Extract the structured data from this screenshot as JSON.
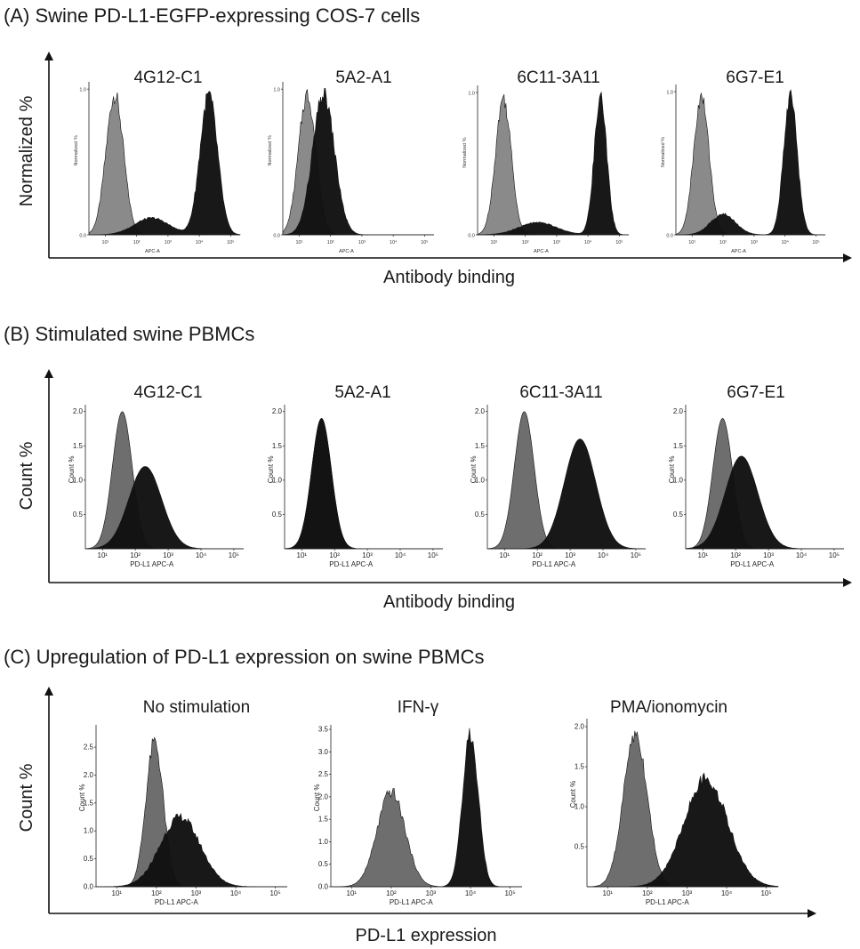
{
  "panels": [
    {
      "title": "(A) Swine PD-L1-EGFP-expressing COS-7 cells",
      "ylabel": "Normalized %",
      "xlabel": "Antibody binding",
      "inner_ylabel": "Normalized %",
      "inner_xlabel": "APC-A",
      "y_ticks": [
        "0.0",
        "1.0"
      ],
      "x_ticks": [
        "10¹",
        "10²",
        "10³",
        "10⁴",
        "10⁵"
      ],
      "plots": [
        {
          "label": "4G12-C1"
        },
        {
          "label": "5A2-A1"
        },
        {
          "label": "6C11-3A11"
        },
        {
          "label": "6G7-E1"
        }
      ]
    },
    {
      "title": "(B) Stimulated swine PBMCs",
      "ylabel": "Count %",
      "xlabel": "Antibody binding",
      "inner_ylabel": "Count %",
      "inner_xlabel": "PD-L1 APC-A",
      "y_ticks": [
        "0.5",
        "1.0",
        "1.5",
        "2.0"
      ],
      "x_ticks": [
        "10¹",
        "10²",
        "10³",
        "10⁴",
        "10⁵"
      ],
      "plots": [
        {
          "label": "4G12-C1"
        },
        {
          "label": "5A2-A1"
        },
        {
          "label": "6C11-3A11"
        },
        {
          "label": "6G7-E1"
        }
      ]
    },
    {
      "title": "(C)  Upregulation of PD-L1 expression on swine PBMCs",
      "ylabel": "Count %",
      "xlabel": "PD-L1 expression",
      "inner_ylabel": "Count %",
      "inner_xlabel": "PD-L1 APC-A",
      "x_ticks": [
        "10¹",
        "10²",
        "10³",
        "10⁴",
        "10⁵"
      ],
      "plots": [
        {
          "label": "No stimulation",
          "y_ticks": [
            "0.0",
            "0.5",
            "1.0",
            "1.5",
            "2.0",
            "2.5"
          ]
        },
        {
          "label": "IFN-γ",
          "y_ticks": [
            "0.0",
            "0.5",
            "1.0",
            "1.5",
            "2.0",
            "2.5",
            "3.0",
            "3.5"
          ]
        },
        {
          "label": "PMA/ionomycin",
          "y_ticks": [
            "0.5",
            "1.0",
            "1.5",
            "2.0"
          ]
        }
      ]
    }
  ],
  "chart_data": [
    {
      "type": "area",
      "title": "(A) Swine PD-L1-EGFP-expressing COS-7 cells",
      "xlabel": "Antibody binding",
      "ylabel": "Normalized %",
      "x_scale": "log",
      "xlim": [
        3,
        200000
      ],
      "ylim": [
        0,
        1.05
      ],
      "colors": {
        "control": "#8a8a8a",
        "stained": "#111111"
      },
      "subplots": [
        {
          "name": "4G12-C1",
          "series": [
            {
              "kind": "control",
              "peaks": [
                {
                  "x": 20,
                  "h": 1.0,
                  "w": 0.28
                }
              ]
            },
            {
              "kind": "stained",
              "peaks": [
                {
                  "x": 20000,
                  "h": 1.0,
                  "w": 0.28
                },
                {
                  "x": 300,
                  "h": 0.12,
                  "w": 0.55
                }
              ]
            }
          ]
        },
        {
          "name": "5A2-A1",
          "series": [
            {
              "kind": "control",
              "peaks": [
                {
                  "x": 18,
                  "h": 1.0,
                  "w": 0.28
                }
              ]
            },
            {
              "kind": "stained",
              "peaks": [
                {
                  "x": 60,
                  "h": 1.0,
                  "w": 0.35
                }
              ]
            }
          ]
        },
        {
          "name": "6C11-3A11",
          "series": [
            {
              "kind": "control",
              "peaks": [
                {
                  "x": 20,
                  "h": 1.0,
                  "w": 0.25
                }
              ]
            },
            {
              "kind": "stained",
              "peaks": [
                {
                  "x": 25000,
                  "h": 1.0,
                  "w": 0.2
                },
                {
                  "x": 250,
                  "h": 0.09,
                  "w": 0.6
                }
              ]
            }
          ]
        },
        {
          "name": "6G7-E1",
          "series": [
            {
              "kind": "control",
              "peaks": [
                {
                  "x": 20,
                  "h": 1.0,
                  "w": 0.25
                }
              ]
            },
            {
              "kind": "stained",
              "peaks": [
                {
                  "x": 15000,
                  "h": 1.0,
                  "w": 0.22
                },
                {
                  "x": 100,
                  "h": 0.15,
                  "w": 0.4
                }
              ]
            }
          ]
        }
      ]
    },
    {
      "type": "area",
      "title": "(B) Stimulated swine PBMCs",
      "xlabel": "Antibody binding",
      "ylabel": "Count %",
      "x_scale": "log",
      "xlim": [
        3,
        200000
      ],
      "ylim": [
        0,
        2.1
      ],
      "colors": {
        "control": "#6e6e6e",
        "stained": "#111111"
      },
      "subplots": [
        {
          "name": "4G12-C1",
          "series": [
            {
              "kind": "control",
              "peaks": [
                {
                  "x": 40,
                  "h": 2.0,
                  "w": 0.3
                }
              ]
            },
            {
              "kind": "stained",
              "peaks": [
                {
                  "x": 200,
                  "h": 1.2,
                  "w": 0.5
                }
              ]
            }
          ]
        },
        {
          "name": "5A2-A1",
          "series": [
            {
              "kind": "control",
              "peaks": [
                {
                  "x": 40,
                  "h": 1.9,
                  "w": 0.3
                }
              ]
            },
            {
              "kind": "stained",
              "peaks": [
                {
                  "x": 40,
                  "h": 1.9,
                  "w": 0.3
                }
              ]
            }
          ]
        },
        {
          "name": "6C11-3A11",
          "series": [
            {
              "kind": "control",
              "peaks": [
                {
                  "x": 40,
                  "h": 2.0,
                  "w": 0.3
                }
              ]
            },
            {
              "kind": "stained",
              "peaks": [
                {
                  "x": 2000,
                  "h": 1.6,
                  "w": 0.48
                }
              ]
            }
          ]
        },
        {
          "name": "6G7-E1",
          "series": [
            {
              "kind": "control",
              "peaks": [
                {
                  "x": 40,
                  "h": 1.9,
                  "w": 0.3
                }
              ]
            },
            {
              "kind": "stained",
              "peaks": [
                {
                  "x": 150,
                  "h": 1.35,
                  "w": 0.5
                }
              ]
            }
          ]
        }
      ]
    },
    {
      "type": "area",
      "title": "(C)  Upregulation of PD-L1 expression on swine PBMCs",
      "xlabel": "PD-L1 expression",
      "ylabel": "Count %",
      "x_scale": "log",
      "xlim": [
        3,
        200000
      ],
      "colors": {
        "control": "#6e6e6e",
        "stained": "#111111"
      },
      "subplots": [
        {
          "name": "No stimulation",
          "ylim": [
            0,
            2.9
          ],
          "series": [
            {
              "kind": "control",
              "peaks": [
                {
                  "x": 90,
                  "h": 2.7,
                  "w": 0.22
                }
              ]
            },
            {
              "kind": "stained",
              "peaks": [
                {
                  "x": 400,
                  "h": 1.3,
                  "w": 0.5
                }
              ]
            }
          ]
        },
        {
          "name": "IFN-γ",
          "ylim": [
            0,
            3.6
          ],
          "series": [
            {
              "kind": "control",
              "peaks": [
                {
                  "x": 100,
                  "h": 2.2,
                  "w": 0.35
                }
              ]
            },
            {
              "kind": "stained",
              "peaks": [
                {
                  "x": 10000,
                  "h": 3.5,
                  "w": 0.2
                }
              ]
            }
          ]
        },
        {
          "name": "PMA/ionomycin",
          "ylim": [
            0,
            2.1
          ],
          "series": [
            {
              "kind": "control",
              "peaks": [
                {
                  "x": 50,
                  "h": 2.0,
                  "w": 0.3
                }
              ]
            },
            {
              "kind": "stained",
              "peaks": [
                {
                  "x": 3000,
                  "h": 1.4,
                  "w": 0.55
                }
              ]
            }
          ]
        }
      ]
    }
  ]
}
